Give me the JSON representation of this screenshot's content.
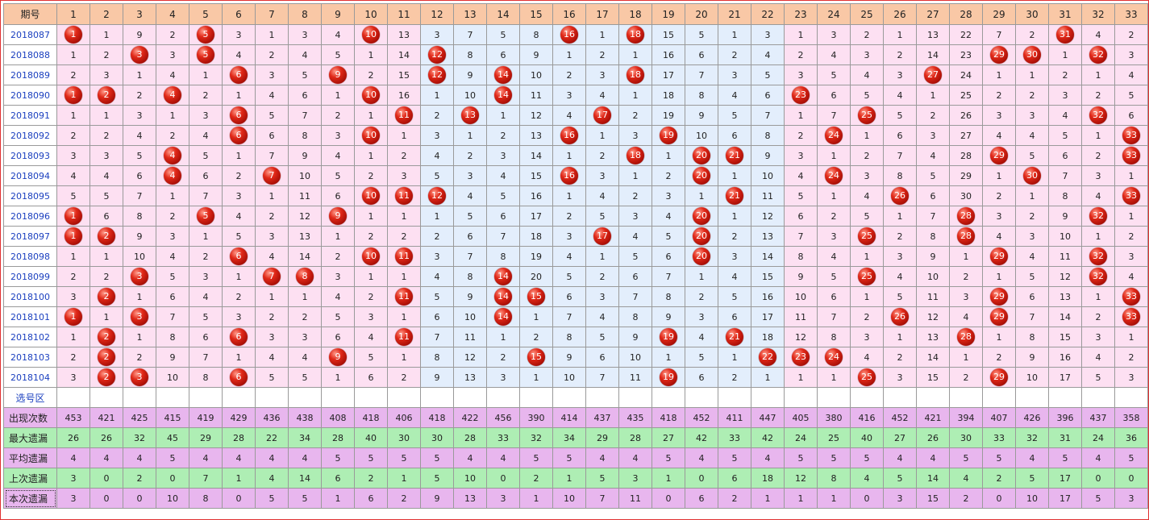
{
  "header": {
    "period_label": "期号",
    "numbers": [
      "1",
      "2",
      "3",
      "4",
      "5",
      "6",
      "7",
      "8",
      "9",
      "10",
      "11",
      "12",
      "13",
      "14",
      "15",
      "16",
      "17",
      "18",
      "19",
      "20",
      "21",
      "22",
      "23",
      "24",
      "25",
      "26",
      "27",
      "28",
      "29",
      "30",
      "31",
      "32",
      "33"
    ]
  },
  "colors": {
    "header_bg": "#f9c8a6",
    "zone_pink": "#fde0f2",
    "zone_blue": "#e3eefc",
    "ball_red": "#e02818",
    "stat_purple": "#e8b6ee",
    "stat_green": "#aeeeb4",
    "period_text": "#1a3fbf"
  },
  "draws": [
    {
      "period": "2018087",
      "cells": [
        "1",
        "1",
        "9",
        "2",
        "5",
        "3",
        "1",
        "3",
        "4",
        "10",
        "13",
        "3",
        "7",
        "5",
        "8",
        "16",
        "1",
        "18",
        "15",
        "5",
        "1",
        "3",
        "1",
        "3",
        "2",
        "1",
        "13",
        "22",
        "7",
        "2",
        "31",
        "4",
        "2"
      ],
      "hits": [
        1,
        5,
        10,
        16,
        18,
        31
      ]
    },
    {
      "period": "2018088",
      "cells": [
        "1",
        "2",
        "3",
        "3",
        "5",
        "4",
        "2",
        "4",
        "5",
        "1",
        "14",
        "12",
        "8",
        "6",
        "9",
        "1",
        "2",
        "1",
        "16",
        "6",
        "2",
        "4",
        "2",
        "4",
        "3",
        "2",
        "14",
        "23",
        "29",
        "30",
        "1",
        "32",
        "3"
      ],
      "hits": [
        3,
        5,
        12,
        29,
        30,
        32
      ]
    },
    {
      "period": "2018089",
      "cells": [
        "2",
        "3",
        "1",
        "4",
        "1",
        "6",
        "3",
        "5",
        "9",
        "2",
        "15",
        "12",
        "9",
        "14",
        "10",
        "2",
        "3",
        "18",
        "17",
        "7",
        "3",
        "5",
        "3",
        "5",
        "4",
        "3",
        "27",
        "24",
        "1",
        "1",
        "2",
        "1",
        "4"
      ],
      "hits": [
        6,
        9,
        12,
        14,
        18,
        27
      ]
    },
    {
      "period": "2018090",
      "cells": [
        "1",
        "2",
        "2",
        "4",
        "2",
        "1",
        "4",
        "6",
        "1",
        "10",
        "16",
        "1",
        "10",
        "14",
        "11",
        "3",
        "4",
        "1",
        "18",
        "8",
        "4",
        "6",
        "23",
        "6",
        "5",
        "4",
        "1",
        "25",
        "2",
        "2",
        "3",
        "2",
        "5"
      ],
      "hits": [
        1,
        2,
        4,
        10,
        14,
        23
      ]
    },
    {
      "period": "2018091",
      "cells": [
        "1",
        "1",
        "3",
        "1",
        "3",
        "6",
        "5",
        "7",
        "2",
        "1",
        "11",
        "2",
        "13",
        "1",
        "12",
        "4",
        "17",
        "2",
        "19",
        "9",
        "5",
        "7",
        "1",
        "7",
        "25",
        "5",
        "2",
        "26",
        "3",
        "3",
        "4",
        "32",
        "6"
      ],
      "hits": [
        6,
        11,
        13,
        17,
        25,
        32
      ]
    },
    {
      "period": "2018092",
      "cells": [
        "2",
        "2",
        "4",
        "2",
        "4",
        "6",
        "6",
        "8",
        "3",
        "10",
        "1",
        "3",
        "1",
        "2",
        "13",
        "16",
        "1",
        "3",
        "19",
        "10",
        "6",
        "8",
        "2",
        "24",
        "1",
        "6",
        "3",
        "27",
        "4",
        "4",
        "5",
        "1",
        "33"
      ],
      "hits": [
        6,
        10,
        16,
        19,
        24,
        33
      ]
    },
    {
      "period": "2018093",
      "cells": [
        "3",
        "3",
        "5",
        "4",
        "5",
        "1",
        "7",
        "9",
        "4",
        "1",
        "2",
        "4",
        "2",
        "3",
        "14",
        "1",
        "2",
        "18",
        "1",
        "20",
        "21",
        "9",
        "3",
        "1",
        "2",
        "7",
        "4",
        "28",
        "29",
        "5",
        "6",
        "2",
        "33"
      ],
      "hits": [
        4,
        18,
        20,
        21,
        29,
        33
      ]
    },
    {
      "period": "2018094",
      "cells": [
        "4",
        "4",
        "6",
        "4",
        "6",
        "2",
        "7",
        "10",
        "5",
        "2",
        "3",
        "5",
        "3",
        "4",
        "15",
        "16",
        "3",
        "1",
        "2",
        "20",
        "1",
        "10",
        "4",
        "24",
        "3",
        "8",
        "5",
        "29",
        "1",
        "30",
        "7",
        "3",
        "1"
      ],
      "hits": [
        4,
        7,
        16,
        20,
        24,
        30
      ]
    },
    {
      "period": "2018095",
      "cells": [
        "5",
        "5",
        "7",
        "1",
        "7",
        "3",
        "1",
        "11",
        "6",
        "10",
        "11",
        "12",
        "4",
        "5",
        "16",
        "1",
        "4",
        "2",
        "3",
        "1",
        "21",
        "11",
        "5",
        "1",
        "4",
        "26",
        "6",
        "30",
        "2",
        "1",
        "8",
        "4",
        "33"
      ],
      "hits": [
        10,
        11,
        12,
        21,
        26,
        33
      ]
    },
    {
      "period": "2018096",
      "cells": [
        "1",
        "6",
        "8",
        "2",
        "5",
        "4",
        "2",
        "12",
        "9",
        "1",
        "1",
        "1",
        "5",
        "6",
        "17",
        "2",
        "5",
        "3",
        "4",
        "20",
        "1",
        "12",
        "6",
        "2",
        "5",
        "1",
        "7",
        "28",
        "3",
        "2",
        "9",
        "32",
        "1"
      ],
      "hits": [
        1,
        5,
        9,
        20,
        28,
        32
      ]
    },
    {
      "period": "2018097",
      "cells": [
        "1",
        "2",
        "9",
        "3",
        "1",
        "5",
        "3",
        "13",
        "1",
        "2",
        "2",
        "2",
        "6",
        "7",
        "18",
        "3",
        "17",
        "4",
        "5",
        "20",
        "2",
        "13",
        "7",
        "3",
        "25",
        "2",
        "8",
        "28",
        "4",
        "3",
        "10",
        "1",
        "2"
      ],
      "hits": [
        1,
        2,
        17,
        20,
        25,
        28
      ]
    },
    {
      "period": "2018098",
      "cells": [
        "1",
        "1",
        "10",
        "4",
        "2",
        "6",
        "4",
        "14",
        "2",
        "10",
        "11",
        "3",
        "7",
        "8",
        "19",
        "4",
        "1",
        "5",
        "6",
        "20",
        "3",
        "14",
        "8",
        "4",
        "1",
        "3",
        "9",
        "1",
        "29",
        "4",
        "11",
        "32",
        "3"
      ],
      "hits": [
        6,
        10,
        11,
        20,
        29,
        32
      ]
    },
    {
      "period": "2018099",
      "cells": [
        "2",
        "2",
        "3",
        "5",
        "3",
        "1",
        "7",
        "8",
        "3",
        "1",
        "1",
        "4",
        "8",
        "14",
        "20",
        "5",
        "2",
        "6",
        "7",
        "1",
        "4",
        "15",
        "9",
        "5",
        "25",
        "4",
        "10",
        "2",
        "1",
        "5",
        "12",
        "32",
        "4"
      ],
      "hits": [
        3,
        7,
        8,
        14,
        25,
        32
      ]
    },
    {
      "period": "2018100",
      "cells": [
        "3",
        "2",
        "1",
        "6",
        "4",
        "2",
        "1",
        "1",
        "4",
        "2",
        "11",
        "5",
        "9",
        "14",
        "15",
        "6",
        "3",
        "7",
        "8",
        "2",
        "5",
        "16",
        "10",
        "6",
        "1",
        "5",
        "11",
        "3",
        "29",
        "6",
        "13",
        "1",
        "33"
      ],
      "hits": [
        2,
        11,
        14,
        15,
        29,
        33
      ]
    },
    {
      "period": "2018101",
      "cells": [
        "1",
        "1",
        "3",
        "7",
        "5",
        "3",
        "2",
        "2",
        "5",
        "3",
        "1",
        "6",
        "10",
        "14",
        "1",
        "7",
        "4",
        "8",
        "9",
        "3",
        "6",
        "17",
        "11",
        "7",
        "2",
        "26",
        "12",
        "4",
        "29",
        "7",
        "14",
        "2",
        "33"
      ],
      "hits": [
        1,
        3,
        14,
        26,
        29,
        33
      ]
    },
    {
      "period": "2018102",
      "cells": [
        "1",
        "2",
        "1",
        "8",
        "6",
        "6",
        "3",
        "3",
        "6",
        "4",
        "11",
        "7",
        "11",
        "1",
        "2",
        "8",
        "5",
        "9",
        "19",
        "4",
        "21",
        "18",
        "12",
        "8",
        "3",
        "1",
        "13",
        "28",
        "1",
        "8",
        "15",
        "3",
        "1"
      ],
      "hits": [
        2,
        6,
        11,
        19,
        21,
        28
      ]
    },
    {
      "period": "2018103",
      "cells": [
        "2",
        "2",
        "2",
        "9",
        "7",
        "1",
        "4",
        "4",
        "9",
        "5",
        "1",
        "8",
        "12",
        "2",
        "15",
        "9",
        "6",
        "10",
        "1",
        "5",
        "1",
        "22",
        "23",
        "24",
        "4",
        "2",
        "14",
        "1",
        "2",
        "9",
        "16",
        "4",
        "2"
      ],
      "hits": [
        2,
        9,
        15,
        22,
        23,
        24
      ]
    },
    {
      "period": "2018104",
      "cells": [
        "3",
        "2",
        "3",
        "10",
        "8",
        "6",
        "5",
        "5",
        "1",
        "6",
        "2",
        "9",
        "13",
        "3",
        "1",
        "10",
        "7",
        "11",
        "19",
        "6",
        "2",
        "1",
        "1",
        "1",
        "25",
        "3",
        "15",
        "2",
        "29",
        "10",
        "17",
        "5",
        "3"
      ],
      "hits": [
        2,
        3,
        6,
        19,
        25,
        29
      ]
    }
  ],
  "select_row": {
    "label": "选号区"
  },
  "stats": [
    {
      "label": "出现次数",
      "style": "purple",
      "values": [
        "453",
        "421",
        "425",
        "415",
        "419",
        "429",
        "436",
        "438",
        "408",
        "418",
        "406",
        "418",
        "422",
        "456",
        "390",
        "414",
        "437",
        "435",
        "418",
        "452",
        "411",
        "447",
        "405",
        "380",
        "416",
        "452",
        "421",
        "394",
        "407",
        "426",
        "396",
        "437",
        "358"
      ]
    },
    {
      "label": "最大遗漏",
      "style": "green",
      "values": [
        "26",
        "26",
        "32",
        "45",
        "29",
        "28",
        "22",
        "34",
        "28",
        "40",
        "30",
        "30",
        "28",
        "33",
        "32",
        "34",
        "29",
        "28",
        "27",
        "42",
        "33",
        "42",
        "24",
        "25",
        "40",
        "27",
        "26",
        "30",
        "33",
        "32",
        "31",
        "24",
        "36"
      ]
    },
    {
      "label": "平均遗漏",
      "style": "purple",
      "values": [
        "4",
        "4",
        "4",
        "5",
        "4",
        "4",
        "4",
        "4",
        "5",
        "5",
        "5",
        "5",
        "4",
        "4",
        "5",
        "5",
        "4",
        "4",
        "5",
        "4",
        "5",
        "4",
        "5",
        "5",
        "5",
        "4",
        "4",
        "5",
        "5",
        "4",
        "5",
        "4",
        "5"
      ]
    },
    {
      "label": "上次遗漏",
      "style": "green",
      "values": [
        "3",
        "0",
        "2",
        "0",
        "7",
        "1",
        "4",
        "14",
        "6",
        "2",
        "1",
        "5",
        "10",
        "0",
        "2",
        "1",
        "5",
        "3",
        "1",
        "0",
        "6",
        "18",
        "12",
        "8",
        "4",
        "5",
        "14",
        "4",
        "2",
        "5",
        "17",
        "0",
        "0"
      ]
    },
    {
      "label": "本次遗漏",
      "style": "purple",
      "values": [
        "3",
        "0",
        "0",
        "10",
        "8",
        "0",
        "5",
        "5",
        "1",
        "6",
        "2",
        "9",
        "13",
        "3",
        "1",
        "10",
        "7",
        "11",
        "0",
        "6",
        "2",
        "1",
        "1",
        "1",
        "0",
        "3",
        "15",
        "2",
        "0",
        "10",
        "17",
        "5",
        "3"
      ]
    }
  ]
}
